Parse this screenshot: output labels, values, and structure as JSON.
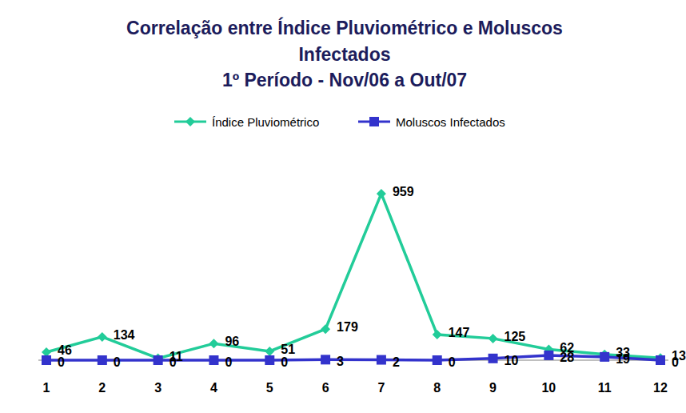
{
  "chart_data": {
    "type": "line",
    "title": [
      "Correlação entre Índice Pluviométrico e Moluscos",
      "Infectados",
      "1º Período - Nov/06 a Out/07"
    ],
    "categories": [
      "1",
      "2",
      "3",
      "4",
      "5",
      "6",
      "7",
      "8",
      "9",
      "10",
      "11",
      "12"
    ],
    "series": [
      {
        "name": "Índice Pluviométrico",
        "color": "#22cc99",
        "marker": "diamond",
        "values": [
          46,
          134,
          11,
          96,
          51,
          179,
          959,
          147,
          125,
          62,
          33,
          13
        ]
      },
      {
        "name": "Moluscos Infectados",
        "color": "#3333cc",
        "marker": "square",
        "values": [
          0,
          0,
          0,
          0,
          0,
          3,
          2,
          0,
          10,
          28,
          19,
          0
        ]
      }
    ],
    "ylim": [
      0,
      1000
    ],
    "tick_labels": "x",
    "data_labels": true,
    "legend": "top"
  }
}
